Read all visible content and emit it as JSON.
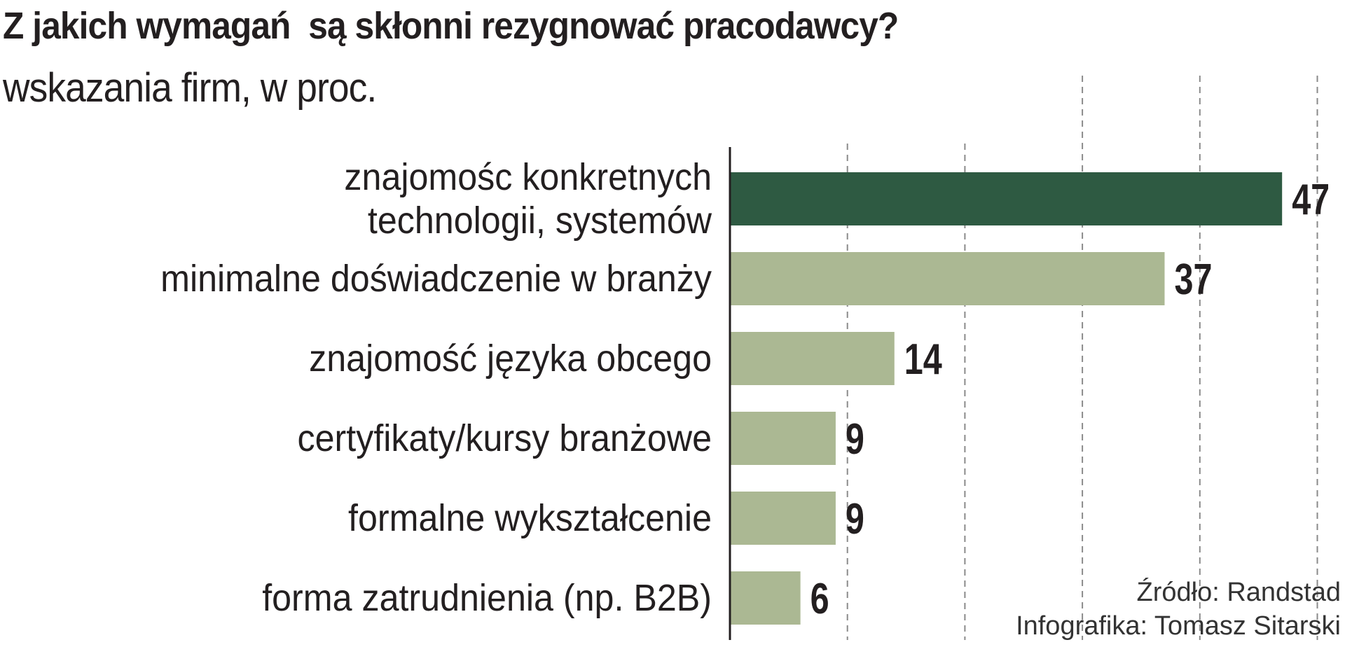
{
  "chart_data": {
    "type": "bar",
    "orientation": "horizontal",
    "title": "Z jakich wymagań  są skłonni rezygnować pracodawcy?",
    "subtitle": "wskazania firm, w proc.",
    "categories": [
      [
        "znajomośc konkretnych",
        "technologii, systemów"
      ],
      [
        "minimalne doświadczenie w branży"
      ],
      [
        "znajomość języka obcego"
      ],
      [
        "certyfikaty/kursy branżowe"
      ],
      [
        "formalne wykształcenie"
      ],
      [
        "forma zatrudnienia (np. B2B)"
      ]
    ],
    "values": [
      47,
      37,
      14,
      9,
      9,
      6
    ],
    "xlim": [
      0,
      50
    ],
    "gridlines": [
      10,
      20,
      30,
      40,
      50
    ],
    "grid": true,
    "colors": {
      "highlight": "#2e5a42",
      "bar": "#abb893",
      "grid": "#8a8a8a",
      "axis": "#231f20"
    },
    "highlight_index": 0
  },
  "source": {
    "line1": "Źródło: Randstad",
    "line2": "Infografika: Tomasz Sitarski"
  }
}
